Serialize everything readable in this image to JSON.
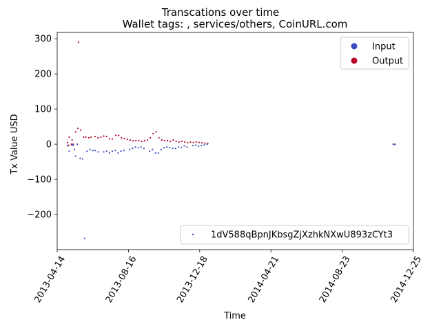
{
  "chart_data": {
    "type": "scatter",
    "title": "Transcations over time",
    "subtitle": "Wallet tags: , services/others, CoinURL.com",
    "xlabel": "Time",
    "ylabel": "Tx Value USD",
    "xlim": [
      "2013-04-14",
      "2014-12-25"
    ],
    "ylim": [
      -300,
      318
    ],
    "x_ticks": [
      "2013-04-14",
      "2013-08-16",
      "2013-12-18",
      "2014-04-21",
      "2014-08-23",
      "2014-12-25"
    ],
    "y_ticks": [
      -200,
      -100,
      0,
      100,
      200,
      300
    ],
    "grid": false,
    "legend_series": {
      "placement": "upper right",
      "entries": [
        {
          "label": "Input",
          "color": "#3b4cc0"
        },
        {
          "label": "Output",
          "color": "#b40426"
        }
      ]
    },
    "legend_wallet": {
      "placement": "lower right",
      "entries": [
        {
          "label": "1dV588qBpnJKbsgZjXzhkNXwU893zCYt3",
          "color": "#3b4cc0"
        }
      ]
    },
    "series": [
      {
        "name": "Output",
        "color": "#b40426",
        "points": [
          [
            "2013-05-02",
            5
          ],
          [
            "2013-05-04",
            -3
          ],
          [
            "2013-05-05",
            20
          ],
          [
            "2013-05-09",
            0
          ],
          [
            "2013-05-10",
            12
          ],
          [
            "2013-05-12",
            0
          ],
          [
            "2013-05-16",
            35
          ],
          [
            "2013-05-20",
            45
          ],
          [
            "2013-05-21",
            290
          ],
          [
            "2013-05-25",
            40
          ],
          [
            "2013-05-30",
            20
          ],
          [
            "2013-06-03",
            20
          ],
          [
            "2013-06-08",
            18
          ],
          [
            "2013-06-12",
            20
          ],
          [
            "2013-06-19",
            22
          ],
          [
            "2013-06-24",
            18
          ],
          [
            "2013-06-29",
            20
          ],
          [
            "2013-07-04",
            23
          ],
          [
            "2013-07-09",
            22
          ],
          [
            "2013-07-14",
            15
          ],
          [
            "2013-07-19",
            15
          ],
          [
            "2013-07-25",
            25
          ],
          [
            "2013-07-30",
            25
          ],
          [
            "2013-08-04",
            18
          ],
          [
            "2013-08-09",
            16
          ],
          [
            "2013-08-14",
            14
          ],
          [
            "2013-08-19",
            12
          ],
          [
            "2013-08-24",
            10
          ],
          [
            "2013-08-29",
            10
          ],
          [
            "2013-09-03",
            10
          ],
          [
            "2013-09-08",
            8
          ],
          [
            "2013-09-13",
            10
          ],
          [
            "2013-09-18",
            12
          ],
          [
            "2013-09-23",
            18
          ],
          [
            "2013-09-28",
            30
          ],
          [
            "2013-10-03",
            35
          ],
          [
            "2013-10-08",
            18
          ],
          [
            "2013-10-13",
            12
          ],
          [
            "2013-10-18",
            10
          ],
          [
            "2013-10-23",
            10
          ],
          [
            "2013-10-28",
            8
          ],
          [
            "2013-11-02",
            12
          ],
          [
            "2013-11-07",
            8
          ],
          [
            "2013-11-12",
            6
          ],
          [
            "2013-11-17",
            8
          ],
          [
            "2013-11-22",
            6
          ],
          [
            "2013-11-27",
            4
          ],
          [
            "2013-12-02",
            6
          ],
          [
            "2013-12-07",
            5
          ],
          [
            "2013-12-12",
            6
          ],
          [
            "2013-12-17",
            5
          ],
          [
            "2013-12-22",
            4
          ],
          [
            "2013-12-27",
            3
          ],
          [
            "2014-01-01",
            2
          ],
          [
            "2014-11-20",
            0
          ],
          [
            "2014-11-23",
            0
          ]
        ]
      },
      {
        "name": "Input",
        "color": "#3b4cc0",
        "points": [
          [
            "2013-05-02",
            -5
          ],
          [
            "2013-05-05",
            -20
          ],
          [
            "2013-05-10",
            -3
          ],
          [
            "2013-05-12",
            -2
          ],
          [
            "2013-05-14",
            -15
          ],
          [
            "2013-05-16",
            -34
          ],
          [
            "2013-05-19",
            0
          ],
          [
            "2013-05-24",
            -40
          ],
          [
            "2013-05-28",
            -42
          ],
          [
            "2013-06-01",
            -268
          ],
          [
            "2013-06-05",
            -20
          ],
          [
            "2013-06-10",
            -15
          ],
          [
            "2013-06-15",
            -18
          ],
          [
            "2013-06-19",
            -18
          ],
          [
            "2013-06-24",
            -22
          ],
          [
            "2013-07-04",
            -22
          ],
          [
            "2013-07-09",
            -20
          ],
          [
            "2013-07-14",
            -25
          ],
          [
            "2013-07-19",
            -20
          ],
          [
            "2013-07-24",
            -18
          ],
          [
            "2013-07-29",
            -25
          ],
          [
            "2013-08-03",
            -20
          ],
          [
            "2013-08-08",
            -18
          ],
          [
            "2013-08-18",
            -15
          ],
          [
            "2013-08-23",
            -12
          ],
          [
            "2013-08-28",
            -8
          ],
          [
            "2013-09-02",
            -10
          ],
          [
            "2013-09-07",
            -8
          ],
          [
            "2013-09-12",
            -12
          ],
          [
            "2013-09-22",
            -20
          ],
          [
            "2013-09-27",
            -15
          ],
          [
            "2013-10-02",
            -25
          ],
          [
            "2013-10-07",
            -25
          ],
          [
            "2013-10-12",
            -15
          ],
          [
            "2013-10-17",
            -10
          ],
          [
            "2013-10-22",
            -8
          ],
          [
            "2013-10-27",
            -10
          ],
          [
            "2013-11-01",
            -12
          ],
          [
            "2013-11-06",
            -12
          ],
          [
            "2013-11-11",
            -8
          ],
          [
            "2013-11-16",
            -10
          ],
          [
            "2013-11-21",
            -5
          ],
          [
            "2013-11-26",
            -8
          ],
          [
            "2013-12-06",
            -4
          ],
          [
            "2013-12-11",
            -3
          ],
          [
            "2013-12-16",
            -6
          ],
          [
            "2013-12-21",
            -4
          ],
          [
            "2013-12-26",
            -2
          ],
          [
            "2013-12-31",
            0
          ],
          [
            "2014-11-20",
            0
          ],
          [
            "2014-11-23",
            -1
          ]
        ]
      }
    ]
  }
}
